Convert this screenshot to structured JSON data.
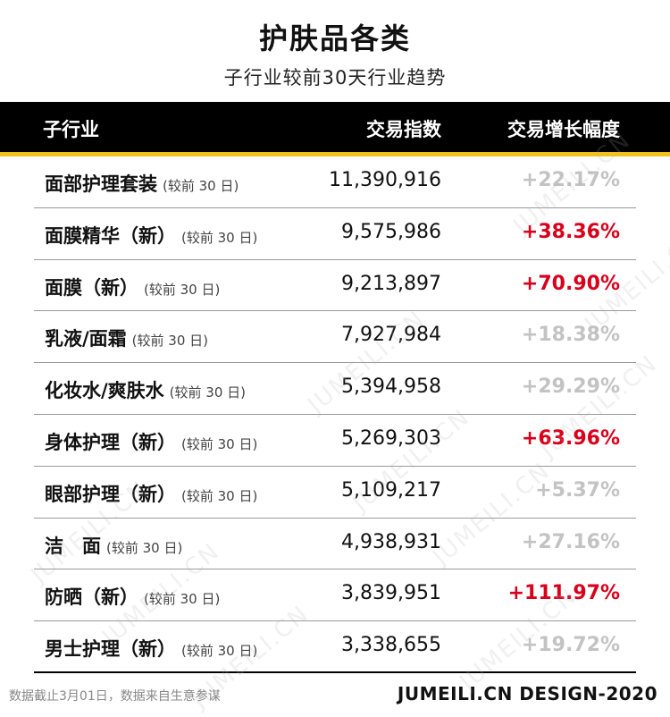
{
  "title": "护肤品各类",
  "subtitle": "子行业较前30天行业趋势",
  "header": {
    "category": "子行业",
    "index": "交易指数",
    "growth": "交易增长幅度"
  },
  "note": "(较前 30 日)",
  "chart_data": {
    "type": "table",
    "columns": [
      "子行业",
      "交易指数",
      "交易增长幅度"
    ],
    "rows": [
      {
        "name": "面部护理套装",
        "note": "(较前 30 日)",
        "index": "11,390,916",
        "growth": "+22.17%",
        "highlight": false
      },
      {
        "name": "面膜精华（新）",
        "note": "(较前 30 日)",
        "index": "9,575,986",
        "growth": "+38.36%",
        "highlight": true
      },
      {
        "name": "面膜（新）",
        "note": "(较前 30 日)",
        "index": "9,213,897",
        "growth": "+70.90%",
        "highlight": true
      },
      {
        "name": "乳液/面霜",
        "note": "(较前 30 日)",
        "index": "7,927,984",
        "growth": "+18.38%",
        "highlight": false
      },
      {
        "name": "化妆水/爽肤水",
        "note": "(较前 30 日)",
        "index": "5,394,958",
        "growth": "+29.29%",
        "highlight": false
      },
      {
        "name": "身体护理（新）",
        "note": "(较前 30 日)",
        "index": "5,269,303",
        "growth": "+63.96%",
        "highlight": true
      },
      {
        "name": "眼部护理（新）",
        "note": "(较前 30 日)",
        "index": "5,109,217",
        "growth": "+5.37%",
        "highlight": false
      },
      {
        "name": "洁　面",
        "note": "(较前 30 日)",
        "index": "4,938,931",
        "growth": "+27.16%",
        "highlight": false
      },
      {
        "name": "防晒（新）",
        "note": "(较前 30 日)",
        "index": "3,839,951",
        "growth": "+111.97%",
        "highlight": true
      },
      {
        "name": "男士护理（新）",
        "note": "(较前 30 日)",
        "index": "3,338,655",
        "growth": "+19.72%",
        "highlight": false
      }
    ]
  },
  "colors": {
    "header_bg": "#000000",
    "accent_underline": "#f2c21b",
    "growth_highlight": "#d9001b",
    "growth_muted": "#c3c3c3"
  },
  "footer": {
    "source": "数据截止3月01日，数据来自生意参谋",
    "brand": "JUMEILI.CN DESIGN-2020"
  },
  "watermark": "JUMEILI.CN"
}
